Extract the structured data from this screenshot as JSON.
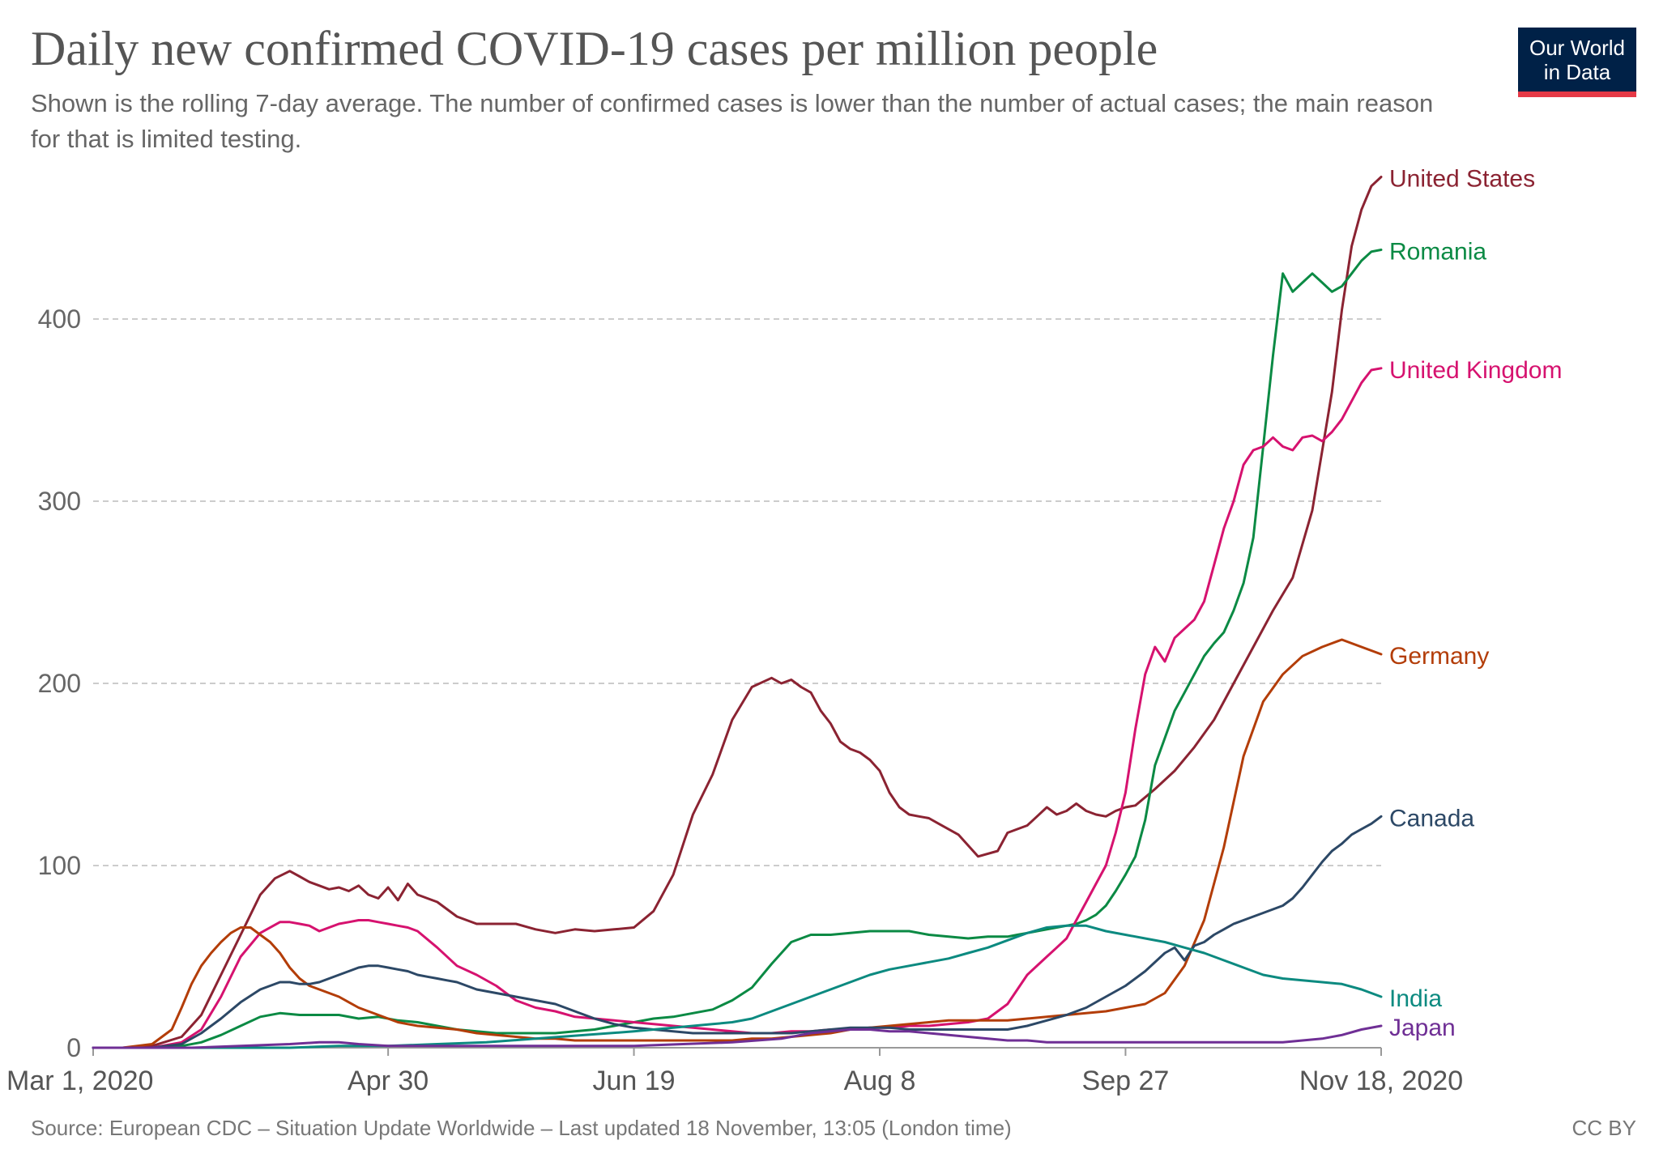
{
  "header": {
    "title": "Daily new confirmed COVID-19 cases per million people",
    "subtitle": "Shown is the rolling 7-day average. The number of confirmed cases is lower than the number of actual cases; the main reason for that is limited testing.",
    "logo_line1": "Our World",
    "logo_line2": "in Data"
  },
  "footer": {
    "source": "Source: European CDC – Situation Update Worldwide – Last updated 18 November, 13:05 (London time)",
    "license": "CC BY"
  },
  "colors": {
    "united_states": "#8b2332",
    "romania": "#0b8a44",
    "united_kingdom": "#d6126f",
    "germany": "#b33d08",
    "canada": "#2c4866",
    "india": "#0c8a80",
    "japan": "#6f2f95"
  },
  "chart_data": {
    "type": "line",
    "title": "Daily new confirmed COVID-19 cases per million people",
    "xlabel": "",
    "ylabel": "",
    "x_unit": "days since Mar 1, 2020",
    "xlim": [
      0,
      262
    ],
    "ylim": [
      0,
      480
    ],
    "yticks": [
      0,
      100,
      200,
      300,
      400
    ],
    "ytick_labels": [
      "0",
      "100",
      "200",
      "300",
      "400"
    ],
    "xticks": [
      0,
      60,
      110,
      160,
      210,
      262
    ],
    "xtick_labels": [
      "Mar 1, 2020",
      "Apr 30",
      "Jun 19",
      "Aug 8",
      "Sep 27",
      "Nov 18, 2020"
    ],
    "grid": true,
    "series": [
      {
        "name": "United States",
        "color": "#8b2332",
        "x": [
          0,
          6,
          12,
          18,
          22,
          26,
          30,
          34,
          37,
          40,
          42,
          44,
          46,
          48,
          50,
          52,
          54,
          56,
          58,
          60,
          62,
          64,
          66,
          70,
          74,
          78,
          82,
          86,
          90,
          94,
          98,
          102,
          106,
          110,
          114,
          118,
          122,
          126,
          130,
          134,
          138,
          140,
          142,
          144,
          146,
          148,
          150,
          152,
          154,
          156,
          158,
          160,
          162,
          164,
          166,
          168,
          170,
          172,
          176,
          180,
          184,
          186,
          188,
          190,
          192,
          194,
          196,
          198,
          200,
          202,
          204,
          206,
          208,
          210,
          212,
          216,
          220,
          224,
          228,
          232,
          236,
          240,
          244,
          248,
          252,
          254,
          256,
          258,
          260,
          262
        ],
        "y": [
          0,
          0,
          1,
          6,
          18,
          40,
          62,
          84,
          93,
          97,
          94,
          91,
          89,
          87,
          88,
          86,
          89,
          84,
          82,
          88,
          81,
          90,
          84,
          80,
          72,
          68,
          68,
          68,
          65,
          63,
          65,
          64,
          65,
          66,
          75,
          95,
          128,
          150,
          180,
          198,
          203,
          200,
          202,
          198,
          195,
          185,
          178,
          168,
          164,
          162,
          158,
          152,
          140,
          132,
          128,
          127,
          126,
          123,
          117,
          105,
          108,
          118,
          120,
          122,
          127,
          132,
          128,
          130,
          134,
          130,
          128,
          127,
          130,
          132,
          133,
          142,
          152,
          165,
          180,
          200,
          220,
          240,
          258,
          295,
          360,
          405,
          440,
          460,
          473,
          478
        ]
      },
      {
        "name": "Romania",
        "color": "#0b8a44",
        "x": [
          0,
          12,
          18,
          22,
          26,
          30,
          34,
          38,
          42,
          46,
          50,
          54,
          58,
          62,
          66,
          70,
          74,
          78,
          82,
          86,
          90,
          94,
          98,
          102,
          106,
          110,
          114,
          118,
          122,
          126,
          130,
          134,
          138,
          142,
          146,
          150,
          154,
          158,
          162,
          166,
          170,
          174,
          178,
          182,
          186,
          188,
          190,
          192,
          194,
          196,
          198,
          200,
          202,
          204,
          206,
          208,
          210,
          212,
          214,
          216,
          218,
          220,
          222,
          224,
          226,
          228,
          230,
          232,
          234,
          236,
          238,
          240,
          242,
          244,
          246,
          248,
          250,
          252,
          254,
          256,
          258,
          260,
          262
        ],
        "y": [
          0,
          0,
          1,
          3,
          7,
          12,
          17,
          19,
          18,
          18,
          18,
          16,
          17,
          15,
          14,
          12,
          10,
          9,
          8,
          8,
          8,
          8,
          9,
          10,
          12,
          14,
          16,
          17,
          19,
          21,
          26,
          33,
          46,
          58,
          62,
          62,
          63,
          64,
          64,
          64,
          62,
          61,
          60,
          61,
          61,
          62,
          63,
          64,
          65,
          66,
          67,
          68,
          70,
          73,
          78,
          86,
          95,
          105,
          125,
          155,
          170,
          185,
          195,
          205,
          215,
          222,
          228,
          240,
          255,
          280,
          330,
          380,
          425,
          415,
          420,
          425,
          420,
          415,
          418,
          425,
          432,
          437,
          438
        ]
      },
      {
        "name": "United Kingdom",
        "color": "#d6126f",
        "x": [
          0,
          12,
          18,
          22,
          26,
          30,
          34,
          38,
          40,
          42,
          44,
          46,
          48,
          50,
          52,
          54,
          56,
          58,
          60,
          62,
          64,
          66,
          70,
          74,
          78,
          82,
          86,
          90,
          94,
          98,
          102,
          106,
          110,
          114,
          118,
          122,
          126,
          130,
          134,
          138,
          142,
          146,
          150,
          154,
          158,
          162,
          166,
          170,
          174,
          178,
          182,
          186,
          190,
          194,
          196,
          198,
          200,
          202,
          204,
          206,
          208,
          210,
          212,
          214,
          216,
          218,
          220,
          222,
          224,
          226,
          228,
          230,
          232,
          234,
          236,
          238,
          240,
          242,
          244,
          246,
          248,
          250,
          252,
          254,
          256,
          258,
          260,
          262
        ],
        "y": [
          0,
          0,
          3,
          10,
          28,
          50,
          63,
          69,
          69,
          68,
          67,
          64,
          66,
          68,
          69,
          70,
          70,
          69,
          68,
          67,
          66,
          64,
          55,
          45,
          40,
          34,
          26,
          22,
          20,
          17,
          16,
          15,
          14,
          13,
          12,
          11,
          10,
          9,
          8,
          8,
          9,
          9,
          10,
          10,
          11,
          11,
          12,
          12,
          13,
          14,
          16,
          24,
          40,
          50,
          55,
          60,
          70,
          80,
          90,
          100,
          118,
          140,
          175,
          205,
          220,
          212,
          225,
          230,
          235,
          245,
          265,
          285,
          300,
          320,
          328,
          330,
          335,
          330,
          328,
          335,
          336,
          333,
          338,
          345,
          355,
          365,
          372,
          373
        ]
      },
      {
        "name": "Germany",
        "color": "#b33d08",
        "x": [
          0,
          6,
          12,
          16,
          18,
          20,
          22,
          24,
          26,
          28,
          30,
          32,
          34,
          36,
          38,
          40,
          42,
          44,
          46,
          48,
          50,
          52,
          54,
          56,
          58,
          60,
          62,
          64,
          66,
          70,
          74,
          78,
          82,
          86,
          90,
          94,
          98,
          102,
          106,
          110,
          114,
          118,
          122,
          126,
          130,
          134,
          138,
          142,
          146,
          150,
          154,
          158,
          162,
          166,
          170,
          174,
          178,
          182,
          186,
          190,
          194,
          198,
          202,
          206,
          210,
          214,
          218,
          222,
          226,
          230,
          234,
          238,
          242,
          246,
          250,
          252,
          254,
          256,
          258,
          260,
          262
        ],
        "y": [
          0,
          0,
          2,
          10,
          22,
          35,
          45,
          52,
          58,
          63,
          66,
          66,
          62,
          58,
          52,
          44,
          38,
          34,
          32,
          30,
          28,
          25,
          22,
          20,
          18,
          16,
          14,
          13,
          12,
          11,
          10,
          8,
          7,
          6,
          5,
          5,
          4,
          4,
          4,
          4,
          4,
          4,
          4,
          4,
          4,
          5,
          5,
          6,
          7,
          8,
          10,
          11,
          12,
          13,
          14,
          15,
          15,
          15,
          15,
          16,
          17,
          18,
          19,
          20,
          22,
          24,
          30,
          45,
          70,
          110,
          160,
          190,
          205,
          215,
          220,
          222,
          224,
          222,
          220,
          218,
          216
        ]
      },
      {
        "name": "Canada",
        "color": "#2c4866",
        "x": [
          0,
          12,
          18,
          22,
          26,
          30,
          34,
          38,
          40,
          42,
          44,
          46,
          48,
          50,
          52,
          54,
          56,
          58,
          60,
          62,
          64,
          66,
          68,
          70,
          72,
          74,
          78,
          82,
          86,
          90,
          94,
          98,
          102,
          106,
          110,
          114,
          118,
          122,
          126,
          130,
          134,
          138,
          142,
          146,
          150,
          154,
          158,
          162,
          166,
          170,
          174,
          178,
          182,
          186,
          190,
          194,
          198,
          202,
          206,
          210,
          214,
          218,
          220,
          222,
          224,
          226,
          228,
          230,
          232,
          234,
          236,
          238,
          240,
          242,
          244,
          246,
          248,
          250,
          252,
          254,
          256,
          258,
          260,
          262
        ],
        "y": [
          0,
          0,
          2,
          8,
          16,
          25,
          32,
          36,
          36,
          35,
          35,
          36,
          38,
          40,
          42,
          44,
          45,
          45,
          44,
          43,
          42,
          40,
          39,
          38,
          37,
          36,
          32,
          30,
          28,
          26,
          24,
          20,
          16,
          13,
          11,
          10,
          9,
          8,
          8,
          8,
          8,
          8,
          8,
          9,
          10,
          11,
          11,
          11,
          10,
          10,
          10,
          10,
          10,
          10,
          12,
          15,
          18,
          22,
          28,
          34,
          42,
          52,
          55,
          48,
          56,
          58,
          62,
          65,
          68,
          70,
          72,
          74,
          76,
          78,
          82,
          88,
          95,
          102,
          108,
          112,
          117,
          120,
          123,
          127
        ]
      },
      {
        "name": "India",
        "color": "#0c8a80",
        "x": [
          0,
          20,
          30,
          40,
          50,
          60,
          70,
          80,
          90,
          100,
          110,
          114,
          118,
          122,
          126,
          130,
          134,
          138,
          142,
          146,
          150,
          154,
          158,
          162,
          166,
          170,
          174,
          178,
          182,
          186,
          190,
          194,
          198,
          202,
          206,
          210,
          214,
          218,
          222,
          226,
          230,
          234,
          238,
          242,
          246,
          250,
          254,
          258,
          262
        ],
        "y": [
          0,
          0,
          0,
          0,
          1,
          1,
          2,
          3,
          5,
          7,
          9,
          10,
          11,
          12,
          13,
          14,
          16,
          20,
          24,
          28,
          32,
          36,
          40,
          43,
          45,
          47,
          49,
          52,
          55,
          59,
          63,
          66,
          67,
          67,
          64,
          62,
          60,
          58,
          55,
          52,
          48,
          44,
          40,
          38,
          37,
          36,
          35,
          32,
          28
        ]
      },
      {
        "name": "Japan",
        "color": "#6f2f95",
        "x": [
          0,
          20,
          30,
          40,
          46,
          50,
          54,
          60,
          70,
          80,
          90,
          100,
          110,
          120,
          130,
          140,
          146,
          150,
          154,
          158,
          162,
          166,
          170,
          174,
          178,
          182,
          186,
          190,
          194,
          198,
          202,
          206,
          210,
          214,
          218,
          222,
          226,
          230,
          234,
          238,
          242,
          246,
          250,
          254,
          258,
          262
        ],
        "y": [
          0,
          0,
          1,
          2,
          3,
          3,
          2,
          1,
          1,
          1,
          1,
          1,
          1,
          2,
          3,
          5,
          8,
          9,
          10,
          10,
          9,
          9,
          8,
          7,
          6,
          5,
          4,
          4,
          3,
          3,
          3,
          3,
          3,
          3,
          3,
          3,
          3,
          3,
          3,
          3,
          3,
          4,
          5,
          7,
          10,
          12
        ]
      }
    ]
  }
}
